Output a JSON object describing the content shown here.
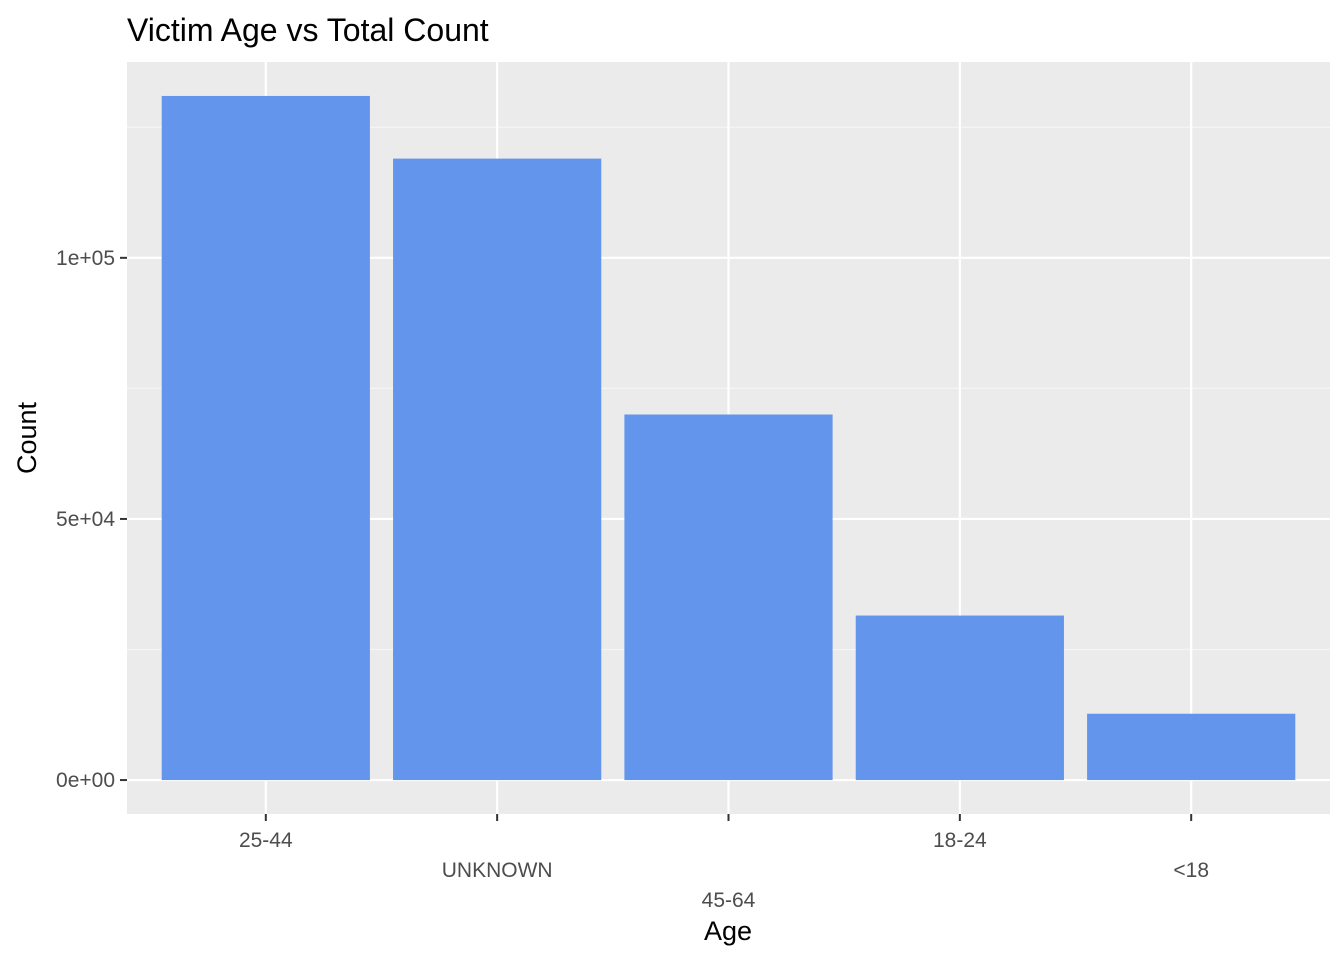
{
  "chart_data": {
    "type": "bar",
    "title": "Victim Age vs Total Count",
    "xlabel": "Age",
    "ylabel": "Count",
    "categories": [
      "25-44",
      "UNKNOWN",
      "45-64",
      "18-24",
      "<18"
    ],
    "values": [
      131000,
      119000,
      70000,
      31500,
      12700
    ],
    "ylim": [
      -6500,
      137500
    ],
    "y_ticks": [
      0,
      50000,
      100000
    ],
    "y_tick_labels": [
      "0e+00",
      "5e+04",
      "1e+05"
    ],
    "x_label_rows": [
      0,
      1,
      2,
      0,
      1
    ],
    "grid": true,
    "legend": "none",
    "colors": {
      "bar": "#6495ED",
      "panel": "#EBEBEB",
      "grid_major": "#FFFFFF",
      "grid_minor": "#F5F5F5",
      "tick": "#333333"
    }
  }
}
